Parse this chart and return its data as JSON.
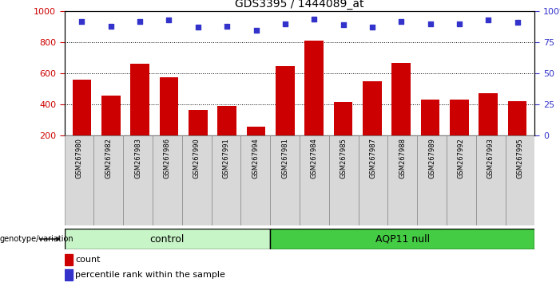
{
  "title": "GDS3395 / 1444089_at",
  "samples": [
    "GSM267980",
    "GSM267982",
    "GSM267983",
    "GSM267986",
    "GSM267990",
    "GSM267991",
    "GSM267994",
    "GSM267981",
    "GSM267984",
    "GSM267985",
    "GSM267987",
    "GSM267988",
    "GSM267989",
    "GSM267992",
    "GSM267993",
    "GSM267995"
  ],
  "counts": [
    560,
    455,
    660,
    575,
    362,
    390,
    255,
    645,
    810,
    415,
    548,
    665,
    430,
    430,
    470,
    420
  ],
  "percentiles": [
    92,
    88,
    92,
    93,
    87,
    88,
    85,
    90,
    94,
    89,
    87,
    92,
    90,
    90,
    93,
    91
  ],
  "n_control": 7,
  "bar_color": "#CC0000",
  "dot_color": "#3333CC",
  "ylim_left": [
    200,
    1000
  ],
  "ylim_right": [
    0,
    100
  ],
  "yticks_left": [
    200,
    400,
    600,
    800,
    1000
  ],
  "yticks_right": [
    0,
    25,
    50,
    75,
    100
  ],
  "left_tick_color": "#CC0000",
  "right_tick_color": "#3333CC",
  "grid_vals": [
    400,
    600,
    800
  ],
  "ctrl_color": "#c8f5c8",
  "aqp_color": "#44cc44",
  "genotype_label": "genotype/variation",
  "ctrl_label": "control",
  "aqp_label": "AQP11 null",
  "legend_count": "count",
  "legend_percentile": "percentile rank within the sample",
  "title_fontsize": 10
}
